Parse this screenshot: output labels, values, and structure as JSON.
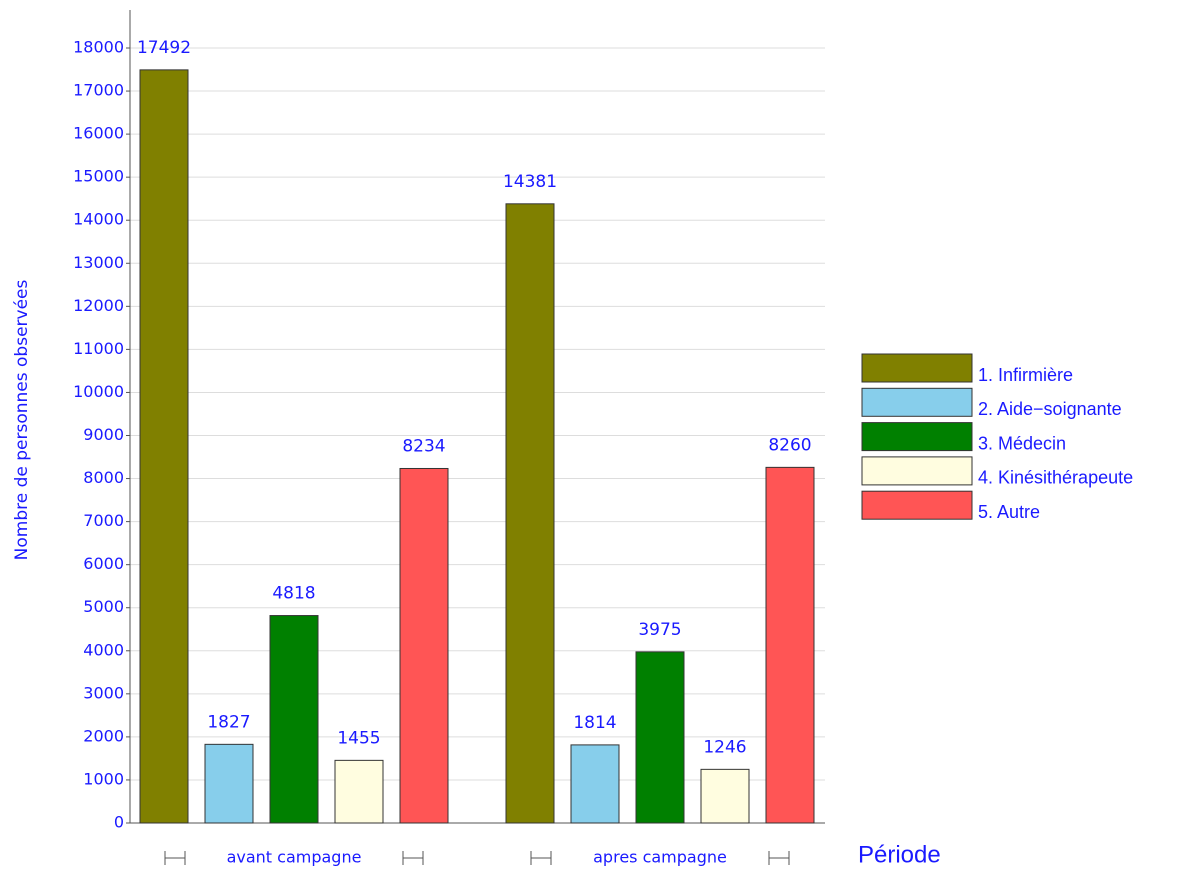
{
  "chart_data": {
    "type": "bar",
    "ylabel": "Nombre de personnes observées",
    "xlabel": "Période",
    "categories": [
      "avant campagne",
      "apres campagne"
    ],
    "series": [
      {
        "name": "1.  Infirmière",
        "color": "#808000",
        "values": [
          17492,
          14381
        ]
      },
      {
        "name": "2. Aide−soignante",
        "color": "#87ceeb",
        "values": [
          1827,
          1814
        ]
      },
      {
        "name": "3. Médecin",
        "color": "#008000",
        "values": [
          4818,
          3975
        ]
      },
      {
        "name": "4. Kinésithérapeute",
        "color": "#fffde0",
        "values": [
          1455,
          1246
        ]
      },
      {
        "name": "5. Autre",
        "color": "#ff5555",
        "values": [
          8234,
          8260
        ]
      }
    ],
    "ylim": [
      0,
      18000
    ],
    "yticks": [
      0,
      1000,
      2000,
      3000,
      4000,
      5000,
      6000,
      7000,
      8000,
      9000,
      10000,
      11000,
      12000,
      13000,
      14000,
      15000,
      16000,
      17000,
      18000
    ],
    "grid": true,
    "legend": "right"
  }
}
